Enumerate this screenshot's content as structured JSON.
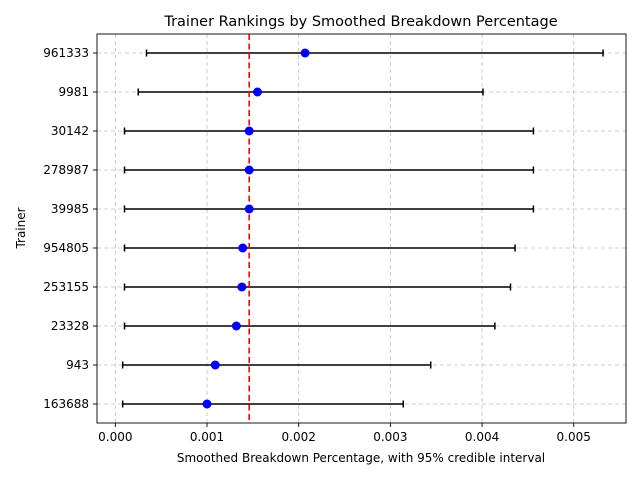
{
  "chart_data": {
    "type": "scatter",
    "title": "Trainer Rankings by Smoothed Breakdown Percentage",
    "xlabel": "Smoothed Breakdown Percentage, with 95% credible interval",
    "ylabel": "Trainer",
    "xlim": [
      -0.0002,
      0.00557
    ],
    "x_ticks": [
      0.0,
      0.001,
      0.002,
      0.003,
      0.004,
      0.005
    ],
    "x_tick_labels": [
      "0.000",
      "0.001",
      "0.002",
      "0.003",
      "0.004",
      "0.005"
    ],
    "grid": true,
    "reference_line": {
      "x": 0.00146,
      "color": "#ff0000",
      "style": "dashed"
    },
    "point_color": "#0000ff",
    "errorbar_color": "#000000",
    "trainers": [
      {
        "label": "961333",
        "value": 0.00207,
        "lower": 0.00034,
        "upper": 0.00532
      },
      {
        "label": "9981",
        "value": 0.00155,
        "lower": 0.00025,
        "upper": 0.00401
      },
      {
        "label": "30142",
        "value": 0.00146,
        "lower": 0.0001,
        "upper": 0.00456
      },
      {
        "label": "278987",
        "value": 0.00146,
        "lower": 0.0001,
        "upper": 0.00456
      },
      {
        "label": "39985",
        "value": 0.00146,
        "lower": 0.0001,
        "upper": 0.00456
      },
      {
        "label": "954805",
        "value": 0.00139,
        "lower": 0.0001,
        "upper": 0.00436
      },
      {
        "label": "253155",
        "value": 0.00138,
        "lower": 0.0001,
        "upper": 0.00431
      },
      {
        "label": "23328",
        "value": 0.00132,
        "lower": 0.0001,
        "upper": 0.00414
      },
      {
        "label": "943",
        "value": 0.00109,
        "lower": 8e-05,
        "upper": 0.00344
      },
      {
        "label": "163688",
        "value": 0.001,
        "lower": 8e-05,
        "upper": 0.00314
      }
    ]
  }
}
